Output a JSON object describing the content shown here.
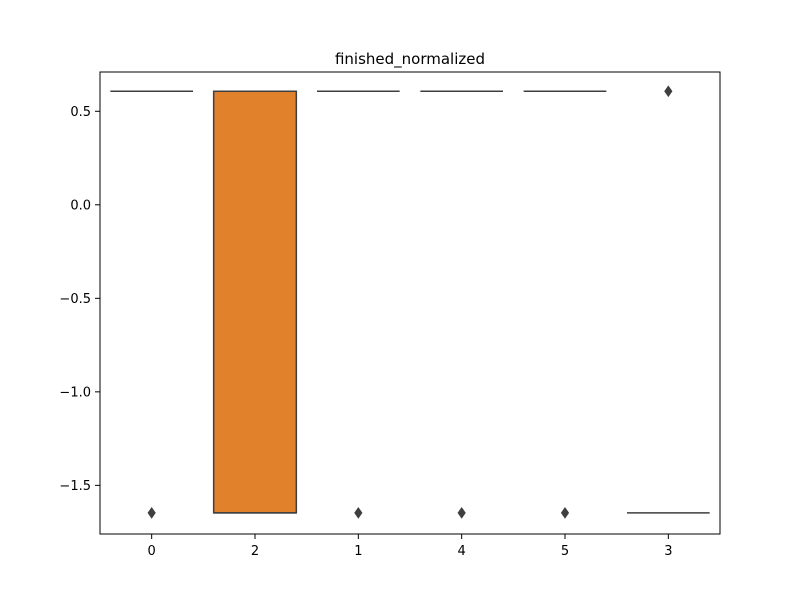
{
  "chart_data": {
    "type": "box",
    "title": "finished_normalized",
    "xlabel": "",
    "ylabel": "",
    "categories": [
      "0",
      "2",
      "1",
      "4",
      "5",
      "3"
    ],
    "ylim": [
      -1.76,
      0.71
    ],
    "yticks": [
      0.5,
      0.0,
      -0.5,
      -1.0,
      -1.5
    ],
    "ytick_labels": [
      "0.5",
      "0.0",
      "−0.5",
      "−1.0",
      "−1.5"
    ],
    "boxes": [
      {
        "category": "0",
        "q1": 0.607,
        "median": 0.607,
        "q3": 0.607,
        "whisker_low": 0.607,
        "whisker_high": 0.607,
        "outliers": [
          -1.647
        ],
        "color": "#3274a1"
      },
      {
        "category": "2",
        "q1": -1.647,
        "median": -1.647,
        "q3": 0.607,
        "whisker_low": -1.647,
        "whisker_high": 0.607,
        "outliers": [],
        "color": "#e1812c"
      },
      {
        "category": "1",
        "q1": 0.607,
        "median": 0.607,
        "q3": 0.607,
        "whisker_low": 0.607,
        "whisker_high": 0.607,
        "outliers": [
          -1.647
        ],
        "color": "#3a923a"
      },
      {
        "category": "4",
        "q1": 0.607,
        "median": 0.607,
        "q3": 0.607,
        "whisker_low": 0.607,
        "whisker_high": 0.607,
        "outliers": [
          -1.647
        ],
        "color": "#c03d3e"
      },
      {
        "category": "5",
        "q1": 0.607,
        "median": 0.607,
        "q3": 0.607,
        "whisker_low": 0.607,
        "whisker_high": 0.607,
        "outliers": [
          -1.647
        ],
        "color": "#9372b2"
      },
      {
        "category": "3",
        "q1": -1.647,
        "median": -1.647,
        "q3": -1.647,
        "whisker_low": -1.647,
        "whisker_high": -1.647,
        "outliers": [
          0.607
        ],
        "color": "#845b53"
      }
    ],
    "grid": false,
    "legend": "none"
  }
}
